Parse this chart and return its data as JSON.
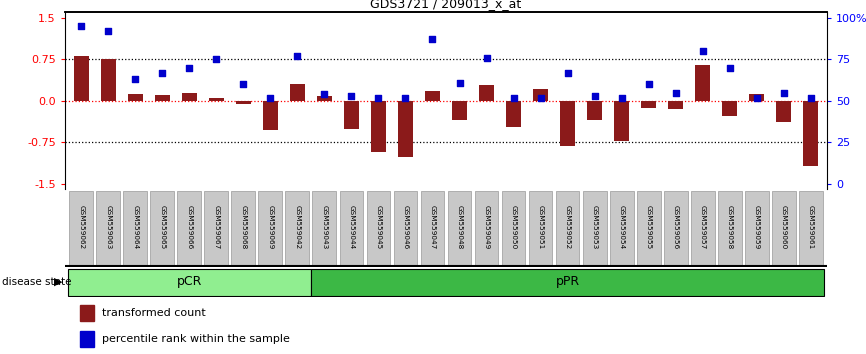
{
  "title": "GDS3721 / 209013_x_at",
  "samples": [
    "GSM559062",
    "GSM559063",
    "GSM559064",
    "GSM559065",
    "GSM559066",
    "GSM559067",
    "GSM559068",
    "GSM559069",
    "GSM559042",
    "GSM559043",
    "GSM559044",
    "GSM559045",
    "GSM559046",
    "GSM559047",
    "GSM559048",
    "GSM559049",
    "GSM559050",
    "GSM559051",
    "GSM559052",
    "GSM559053",
    "GSM559054",
    "GSM559055",
    "GSM559056",
    "GSM559057",
    "GSM559058",
    "GSM559059",
    "GSM559060",
    "GSM559061"
  ],
  "bar_values": [
    0.82,
    0.75,
    0.12,
    0.1,
    0.15,
    0.05,
    -0.05,
    -0.52,
    0.3,
    0.08,
    -0.5,
    -0.92,
    -1.02,
    0.18,
    -0.35,
    0.28,
    -0.48,
    0.22,
    -0.82,
    -0.35,
    -0.72,
    -0.12,
    -0.15,
    0.65,
    -0.28,
    0.12,
    -0.38,
    -1.18
  ],
  "dot_percentiles": [
    95,
    92,
    63,
    67,
    70,
    75,
    60,
    52,
    77,
    54,
    53,
    52,
    52,
    87,
    61,
    76,
    52,
    52,
    67,
    53,
    52,
    60,
    55,
    80,
    70,
    52,
    55,
    52
  ],
  "pCR_count": 9,
  "pPR_count": 19,
  "bar_color": "#8B1A1A",
  "dot_color": "#0000CC",
  "pCR_color": "#90EE90",
  "pPR_color": "#3CB845",
  "label_bg_color": "#C8C8C8",
  "ylim": [
    -1.6,
    1.6
  ],
  "yticks_left": [
    -1.5,
    -0.75,
    0.0,
    0.75,
    1.5
  ],
  "yticks_right": [
    0,
    25,
    50,
    75,
    100
  ],
  "yticks_right_labels": [
    "0",
    "25",
    "50",
    "75",
    "100%"
  ],
  "hlines_dotted": [
    0.75,
    -0.75
  ],
  "hline_red": 0.0,
  "legend_items": [
    "transformed count",
    "percentile rank within the sample"
  ],
  "disease_state_label": "disease state"
}
